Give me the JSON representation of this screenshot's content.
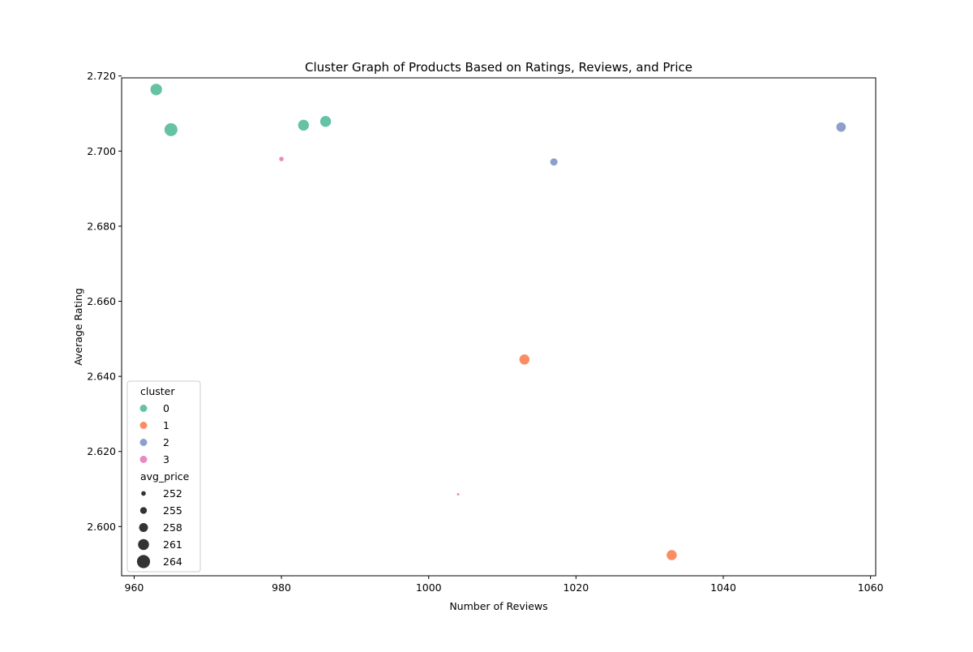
{
  "chart_data": {
    "type": "scatter",
    "title": "Cluster Graph of Products Based on Ratings, Reviews, and Price",
    "xlabel": "Number of Reviews",
    "ylabel": "Average Rating",
    "xlim": [
      958.3,
      1060.7
    ],
    "ylim": [
      2.5869,
      2.7195
    ],
    "xticks": [
      960,
      980,
      1000,
      1020,
      1040,
      1060
    ],
    "yticks": [
      2.6,
      2.62,
      2.64,
      2.66,
      2.68,
      2.7,
      2.72
    ],
    "xtick_labels": [
      "960",
      "980",
      "1000",
      "1020",
      "1040",
      "1060"
    ],
    "ytick_labels": [
      "2.600",
      "2.620",
      "2.640",
      "2.660",
      "2.680",
      "2.700",
      "2.720"
    ],
    "grid": false,
    "hue_field": "cluster",
    "size_field": "avg_price",
    "cluster_colors": {
      "0": "#66c2a5",
      "1": "#fc8d62",
      "2": "#8da0cb",
      "3": "#e78ac3"
    },
    "points": [
      {
        "x": 963,
        "y": 2.7164,
        "cluster": 0,
        "avg_price": 263
      },
      {
        "x": 965,
        "y": 2.7057,
        "cluster": 0,
        "avg_price": 265
      },
      {
        "x": 983,
        "y": 2.7069,
        "cluster": 0,
        "avg_price": 262
      },
      {
        "x": 986,
        "y": 2.7079,
        "cluster": 0,
        "avg_price": 262
      },
      {
        "x": 980,
        "y": 2.6979,
        "cluster": 3,
        "avg_price": 253
      },
      {
        "x": 1004,
        "y": 2.6086,
        "cluster": 3,
        "avg_price": 250
      },
      {
        "x": 1013,
        "y": 2.6445,
        "cluster": 1,
        "avg_price": 261
      },
      {
        "x": 1033,
        "y": 2.5924,
        "cluster": 1,
        "avg_price": 261
      },
      {
        "x": 1017,
        "y": 2.6971,
        "cluster": 2,
        "avg_price": 257
      },
      {
        "x": 1056,
        "y": 2.7064,
        "cluster": 2,
        "avg_price": 260
      }
    ],
    "legend": {
      "position": "lower left",
      "hue_title": "cluster",
      "hue_entries": [
        "0",
        "1",
        "2",
        "3"
      ],
      "size_title": "avg_price",
      "size_entries": [
        "252",
        "255",
        "258",
        "261",
        "264"
      ],
      "size_colors": "#333333"
    }
  }
}
